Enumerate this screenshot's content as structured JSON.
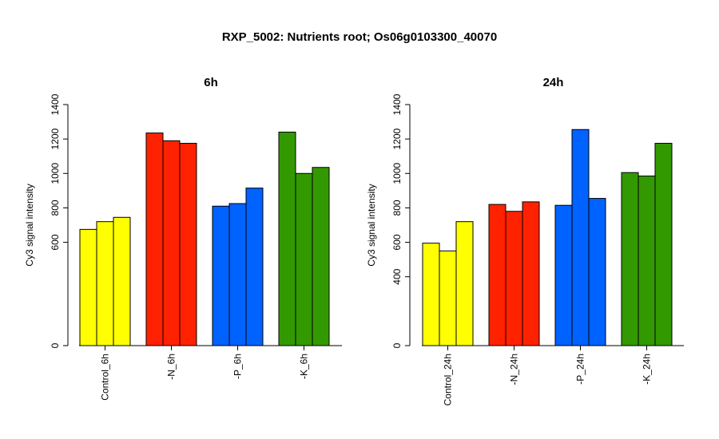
{
  "title": "RXP_5002: Nutrients root; Os06g0103300_40070",
  "colors": {
    "yellow": "#ffff00",
    "red": "#ff2200",
    "blue": "#0062ff",
    "green": "#339900"
  },
  "chart_data": [
    {
      "type": "bar",
      "title": "6h",
      "ylabel": "Cy3 signal intensity",
      "ylim": [
        0,
        1400
      ],
      "yticks": [
        0,
        600,
        800,
        1000,
        1200,
        1400
      ],
      "categories": [
        "Control_6h",
        "-N_6h",
        "-P_6h",
        "-K_6h"
      ],
      "group_colors": [
        "#ffff00",
        "#ff2200",
        "#0062ff",
        "#339900"
      ],
      "values": [
        [
          675,
          720,
          745
        ],
        [
          1235,
          1190,
          1175
        ],
        [
          810,
          825,
          915
        ],
        [
          1240,
          1000,
          1035
        ]
      ]
    },
    {
      "type": "bar",
      "title": "24h",
      "ylabel": "Cy3 signal intensity",
      "ylim": [
        0,
        1400
      ],
      "yticks": [
        0,
        400,
        600,
        800,
        1000,
        1200,
        1400
      ],
      "categories": [
        "Control_24h",
        "-N_24h",
        "-P_24h",
        "-K_24h"
      ],
      "group_colors": [
        "#ffff00",
        "#ff2200",
        "#0062ff",
        "#339900"
      ],
      "values": [
        [
          595,
          550,
          720
        ],
        [
          820,
          780,
          835
        ],
        [
          815,
          1255,
          855
        ],
        [
          1005,
          985,
          1175
        ]
      ]
    }
  ]
}
